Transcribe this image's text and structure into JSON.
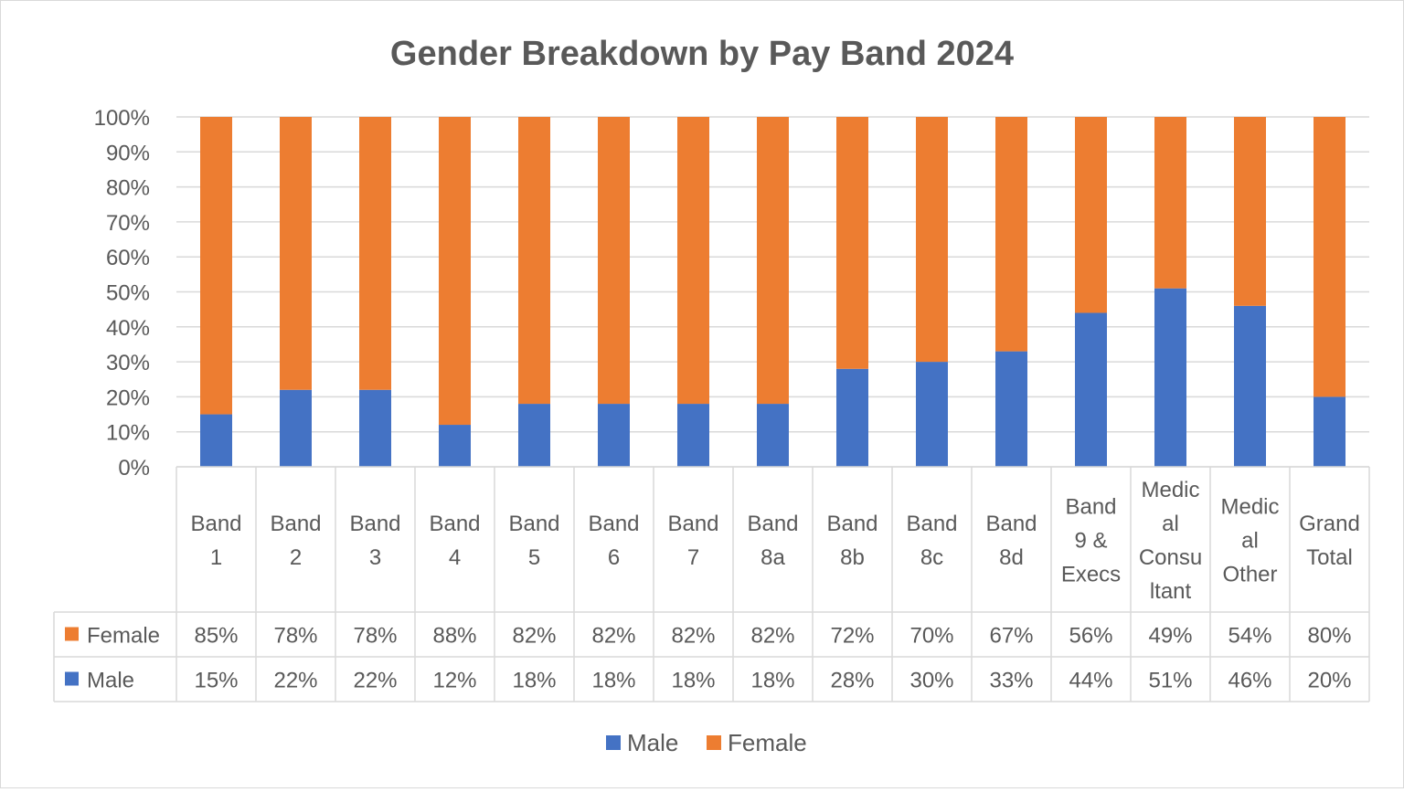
{
  "chart_data": {
    "type": "bar",
    "stacked": "percent",
    "title": "Gender Breakdown by Pay Band 2024",
    "xlabel": "",
    "ylabel": "",
    "ylim": [
      0,
      100
    ],
    "y_ticks": [
      "0%",
      "10%",
      "20%",
      "30%",
      "40%",
      "50%",
      "60%",
      "70%",
      "80%",
      "90%",
      "100%"
    ],
    "grid": true,
    "legend_position": "bottom",
    "legend": [
      "Male",
      "Female"
    ],
    "data_table": true,
    "categories": [
      [
        "Band",
        "1"
      ],
      [
        "Band",
        "2"
      ],
      [
        "Band",
        "3"
      ],
      [
        "Band",
        "4"
      ],
      [
        "Band",
        "5"
      ],
      [
        "Band",
        "6"
      ],
      [
        "Band",
        "7"
      ],
      [
        "Band",
        "8a"
      ],
      [
        "Band",
        "8b"
      ],
      [
        "Band",
        "8c"
      ],
      [
        "Band",
        "8d"
      ],
      [
        "Band",
        "9 &",
        "Execs"
      ],
      [
        "Medic",
        "al",
        "Consu",
        "ltant"
      ],
      [
        "Medic",
        "al",
        "Other"
      ],
      [
        "Grand",
        "Total"
      ]
    ],
    "series": [
      {
        "name": "Female",
        "color": "#ED7D31",
        "values": [
          85,
          78,
          78,
          88,
          82,
          82,
          82,
          82,
          72,
          70,
          67,
          56,
          49,
          54,
          80
        ],
        "labels": [
          "85%",
          "78%",
          "78%",
          "88%",
          "82%",
          "82%",
          "82%",
          "82%",
          "72%",
          "70%",
          "67%",
          "56%",
          "49%",
          "54%",
          "80%"
        ]
      },
      {
        "name": "Male",
        "color": "#4472C4",
        "values": [
          15,
          22,
          22,
          12,
          18,
          18,
          18,
          18,
          28,
          30,
          33,
          44,
          51,
          46,
          20
        ],
        "labels": [
          "15%",
          "22%",
          "22%",
          "12%",
          "18%",
          "18%",
          "18%",
          "18%",
          "28%",
          "30%",
          "33%",
          "44%",
          "51%",
          "46%",
          "20%"
        ]
      }
    ]
  }
}
